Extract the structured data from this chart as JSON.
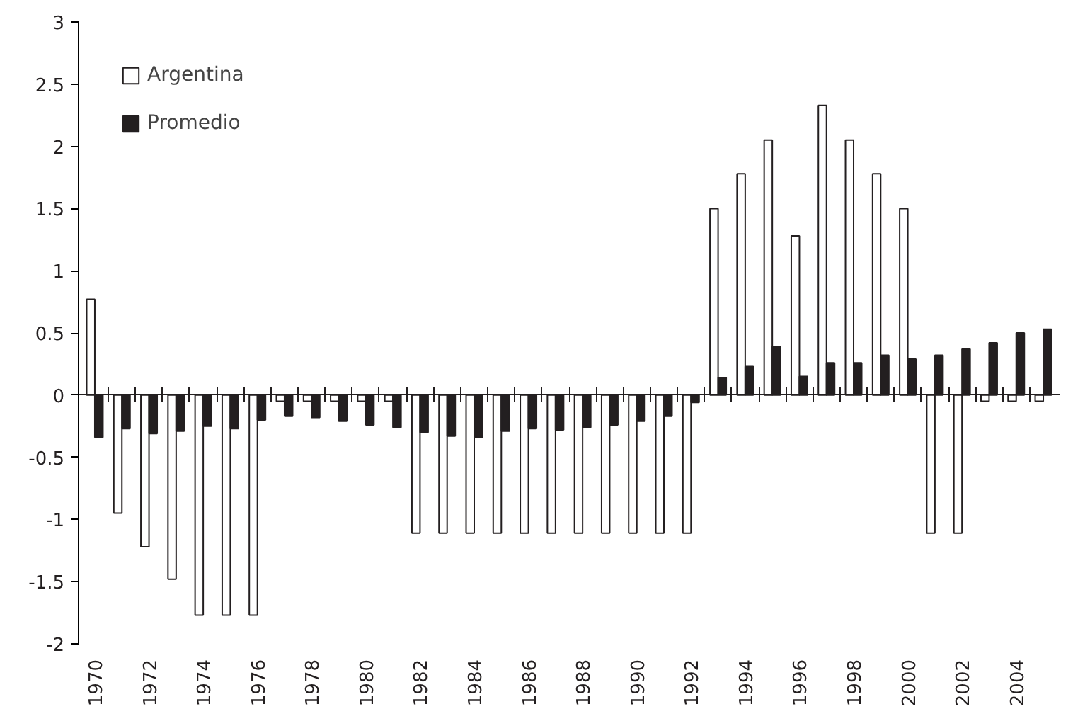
{
  "chart_data": {
    "type": "bar",
    "categories": [
      "1970",
      null,
      "1972",
      null,
      "1974",
      null,
      "1976",
      null,
      "1978",
      null,
      "1980",
      null,
      "1982",
      null,
      "1984",
      null,
      "1986",
      null,
      "1988",
      null,
      "1990",
      null,
      "1992",
      null,
      "1994",
      null,
      "1996",
      null,
      "1998",
      null,
      "2000",
      null,
      "2002",
      null,
      "2004",
      null
    ],
    "series": [
      {
        "name": "Argentina",
        "color": "#ffffff",
        "values": [
          0.77,
          -0.95,
          -1.22,
          -1.48,
          -1.77,
          -1.77,
          -1.77,
          -0.05,
          -0.05,
          -0.05,
          -0.05,
          -0.05,
          -1.11,
          -1.11,
          -1.11,
          -1.11,
          -1.11,
          -1.11,
          -1.11,
          -1.11,
          -1.11,
          -1.11,
          -1.11,
          1.5,
          1.78,
          2.05,
          1.28,
          2.33,
          2.05,
          1.78,
          1.5,
          -1.11,
          -1.11,
          -0.05,
          -0.05,
          -0.05
        ]
      },
      {
        "name": "Promedio",
        "color": "#231f20",
        "values": [
          -0.34,
          -0.27,
          -0.31,
          -0.29,
          -0.25,
          -0.27,
          -0.2,
          -0.17,
          -0.18,
          -0.21,
          -0.24,
          -0.26,
          -0.3,
          -0.33,
          -0.34,
          -0.29,
          -0.27,
          -0.28,
          -0.26,
          -0.24,
          -0.21,
          -0.17,
          -0.06,
          0.14,
          0.23,
          0.39,
          0.15,
          0.26,
          0.26,
          0.32,
          0.29,
          0.32,
          0.37,
          0.42,
          0.5,
          0.53
        ]
      }
    ],
    "ylim": [
      -2,
      3
    ],
    "yticks": [
      -2,
      -1.5,
      -1,
      -0.5,
      0,
      0.5,
      1,
      1.5,
      2,
      2.5,
      3
    ],
    "legend": "top left"
  }
}
